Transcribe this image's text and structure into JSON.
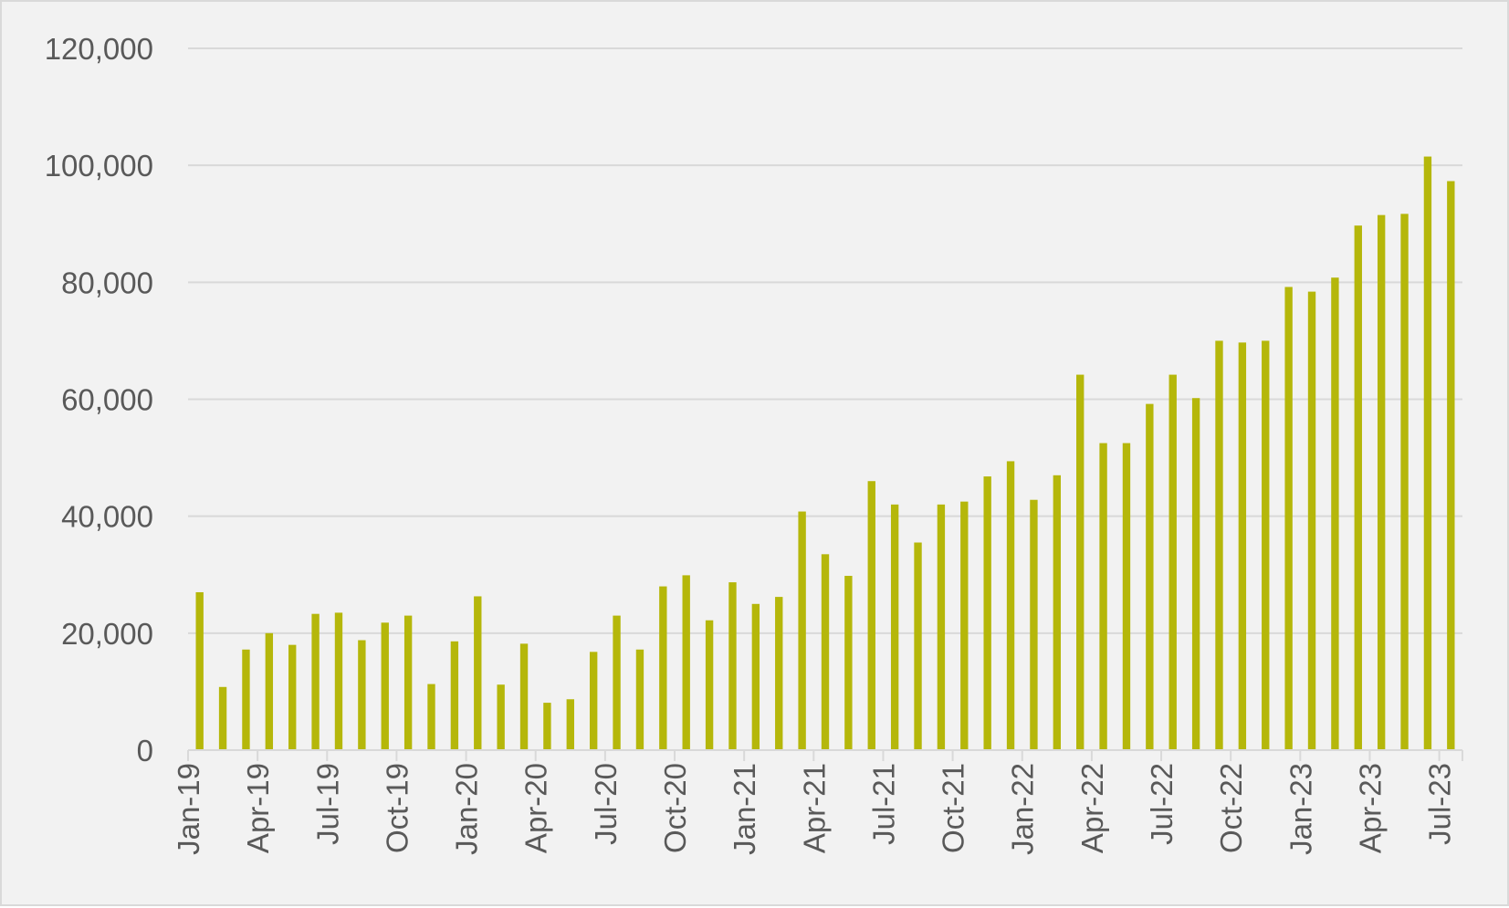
{
  "colors": {
    "background": "#f2f2f2",
    "bar": "#b5b70a",
    "grid": "#d9d9d9",
    "text": "#595959"
  },
  "chart_data": {
    "type": "bar",
    "title": "",
    "xlabel": "",
    "ylabel": "",
    "ylim": [
      0,
      120000
    ],
    "yticks": [
      0,
      20000,
      40000,
      60000,
      80000,
      100000,
      120000
    ],
    "ytick_labels": [
      "0",
      "20,000",
      "40,000",
      "60,000",
      "80,000",
      "100,000",
      "120,000"
    ],
    "grid": true,
    "legend": "none",
    "xtick_labels": [
      "Jan-19",
      "Apr-19",
      "Jul-19",
      "Oct-19",
      "Jan-20",
      "Apr-20",
      "Jul-20",
      "Oct-20",
      "Jan-21",
      "Apr-21",
      "Jul-21",
      "Oct-21",
      "Jan-22",
      "Apr-22",
      "Jul-22",
      "Oct-22",
      "Jan-23",
      "Apr-23",
      "Jul-23"
    ],
    "categories": [
      "Jan-19",
      "Feb-19",
      "Mar-19",
      "Apr-19",
      "May-19",
      "Jun-19",
      "Jul-19",
      "Aug-19",
      "Sep-19",
      "Oct-19",
      "Nov-19",
      "Dec-19",
      "Jan-20",
      "Feb-20",
      "Mar-20",
      "Apr-20",
      "May-20",
      "Jun-20",
      "Jul-20",
      "Aug-20",
      "Sep-20",
      "Oct-20",
      "Nov-20",
      "Dec-20",
      "Jan-21",
      "Feb-21",
      "Mar-21",
      "Apr-21",
      "May-21",
      "Jun-21",
      "Jul-21",
      "Aug-21",
      "Sep-21",
      "Oct-21",
      "Nov-21",
      "Dec-21",
      "Jan-22",
      "Feb-22",
      "Mar-22",
      "Apr-22",
      "May-22",
      "Jun-22",
      "Jul-22",
      "Aug-22",
      "Sep-22",
      "Oct-22",
      "Nov-22",
      "Dec-22",
      "Jan-23",
      "Feb-23",
      "Mar-23",
      "Apr-23",
      "May-23",
      "Jun-23",
      "Jul-23"
    ],
    "values": [
      27000,
      10800,
      17200,
      20000,
      18000,
      23300,
      23500,
      18800,
      21800,
      23000,
      11300,
      18600,
      26300,
      11200,
      18200,
      8100,
      8700,
      16800,
      23000,
      17200,
      28000,
      29900,
      22200,
      28700,
      25000,
      26200,
      40800,
      33500,
      29800,
      46000,
      42000,
      35500,
      42000,
      42500,
      46800,
      49400,
      42800,
      47000,
      64200,
      52500,
      52500,
      59200,
      64200,
      60200,
      70000,
      69700,
      70000,
      79200,
      78400,
      80800,
      89700,
      91500,
      91700,
      101500,
      97300
    ]
  }
}
